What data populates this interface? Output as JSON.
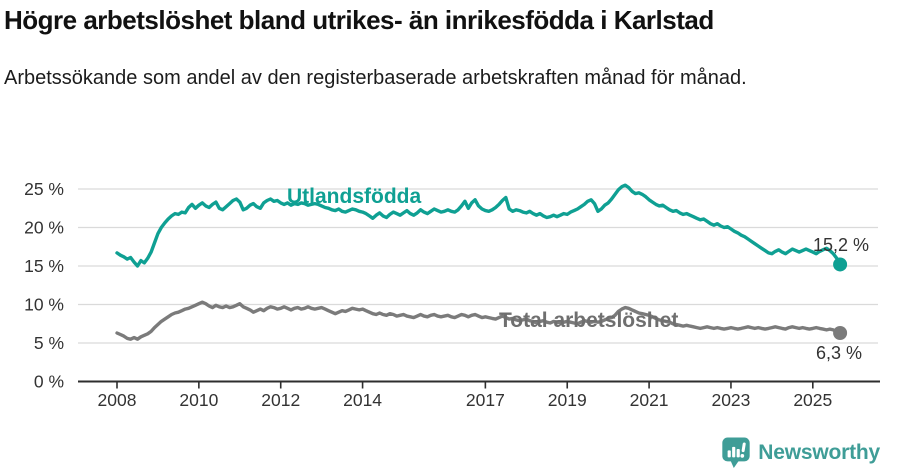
{
  "header": {
    "title": "Högre arbetslöshet bland utrikes- än inrikesfödda i Karlstad",
    "subtitle": "Arbetssökande som andel av den registerbaserade arbetskraften månad för månad."
  },
  "footer": {
    "brand": "Newsworthy",
    "brand_color": "#3f9d97"
  },
  "chart_data": {
    "type": "line",
    "title": "Högre arbetslöshet bland utrikes- än inrikesfödda i Karlstad",
    "x_start_year": 2008,
    "x_step_months": 1,
    "x_end_label_period": "sep 2025",
    "x_tick_years": [
      2008,
      2010,
      2012,
      2014,
      2017,
      2019,
      2021,
      2023,
      2025
    ],
    "x_tick_labels": [
      "2008",
      "2010",
      "2012",
      "2014",
      "2017",
      "2019",
      "2021",
      "2023",
      "2025"
    ],
    "y_ticks": [
      0,
      5,
      10,
      15,
      20,
      25
    ],
    "y_tick_labels": [
      "0 %",
      "5 %",
      "10 %",
      "15 %",
      "20 %",
      "25 %"
    ],
    "ylim": [
      0,
      27
    ],
    "grid": "horizontal",
    "grid_color": "#dadada",
    "axis_color": "#2e2e2e",
    "legend_position": "inline-labels",
    "series": [
      {
        "name": "Utlandsfödda",
        "color": "#0fa093",
        "end_label": "15,2 %",
        "end_value": 15.2,
        "values": [
          16.7,
          16.4,
          16.2,
          15.9,
          16.1,
          15.5,
          15.0,
          15.7,
          15.4,
          16.0,
          16.8,
          18.0,
          19.2,
          20.0,
          20.6,
          21.1,
          21.5,
          21.8,
          21.7,
          22.0,
          21.9,
          22.6,
          23.0,
          22.5,
          22.9,
          23.2,
          22.8,
          22.6,
          23.0,
          23.3,
          22.5,
          22.3,
          22.7,
          23.1,
          23.5,
          23.7,
          23.3,
          22.3,
          22.5,
          22.9,
          23.1,
          22.7,
          22.5,
          23.2,
          23.5,
          23.7,
          23.4,
          23.5,
          23.2,
          23.0,
          23.2,
          22.9,
          23.1,
          23.0,
          23.2,
          23.1,
          22.9,
          23.0,
          23.1,
          23.0,
          22.8,
          22.6,
          22.5,
          22.3,
          22.2,
          22.4,
          22.1,
          22.0,
          22.2,
          22.4,
          22.3,
          22.1,
          22.0,
          21.8,
          21.5,
          21.2,
          21.6,
          21.9,
          21.5,
          21.3,
          21.7,
          22.0,
          21.8,
          21.6,
          21.9,
          22.2,
          21.8,
          21.6,
          21.9,
          22.3,
          22.0,
          21.8,
          22.1,
          22.4,
          22.2,
          22.0,
          22.1,
          22.3,
          22.1,
          22.0,
          22.3,
          22.8,
          23.4,
          22.5,
          23.2,
          23.6,
          22.8,
          22.4,
          22.2,
          22.1,
          22.3,
          22.6,
          23.0,
          23.5,
          23.9,
          22.4,
          22.1,
          22.3,
          22.2,
          22.0,
          21.9,
          22.1,
          21.8,
          21.6,
          21.8,
          21.5,
          21.3,
          21.4,
          21.6,
          21.4,
          21.6,
          21.8,
          21.7,
          22.0,
          22.2,
          22.4,
          22.7,
          23.0,
          23.4,
          23.6,
          23.1,
          22.1,
          22.4,
          22.9,
          23.2,
          23.7,
          24.3,
          24.9,
          25.3,
          25.5,
          25.2,
          24.7,
          24.4,
          24.5,
          24.3,
          24.0,
          23.6,
          23.3,
          23.0,
          22.8,
          22.9,
          22.6,
          22.3,
          22.1,
          22.2,
          21.9,
          21.7,
          21.8,
          21.6,
          21.4,
          21.2,
          21.0,
          21.1,
          20.8,
          20.5,
          20.3,
          20.5,
          20.2,
          20.0,
          20.1,
          19.8,
          19.5,
          19.3,
          19.0,
          18.8,
          18.5,
          18.2,
          17.9,
          17.6,
          17.3,
          17.0,
          16.7,
          16.6,
          16.9,
          17.1,
          16.8,
          16.6,
          16.9,
          17.2,
          17.0,
          16.8,
          17.0,
          17.2,
          17.0,
          16.8,
          16.6,
          16.9,
          17.1,
          17.3,
          17.0,
          16.6,
          16.0,
          15.2
        ]
      },
      {
        "name": "Total arbetslöshet",
        "color": "#7b7b7b",
        "end_label": "6,3 %",
        "end_value": 6.3,
        "values": [
          6.3,
          6.1,
          5.9,
          5.6,
          5.5,
          5.7,
          5.5,
          5.8,
          6.0,
          6.2,
          6.5,
          7.0,
          7.4,
          7.8,
          8.1,
          8.4,
          8.7,
          8.9,
          9.0,
          9.2,
          9.4,
          9.5,
          9.7,
          9.9,
          10.1,
          10.3,
          10.1,
          9.8,
          9.6,
          9.9,
          9.7,
          9.6,
          9.8,
          9.6,
          9.7,
          9.9,
          10.1,
          9.7,
          9.5,
          9.3,
          9.0,
          9.2,
          9.4,
          9.2,
          9.5,
          9.7,
          9.6,
          9.4,
          9.5,
          9.7,
          9.5,
          9.3,
          9.5,
          9.6,
          9.4,
          9.5,
          9.7,
          9.5,
          9.4,
          9.5,
          9.6,
          9.4,
          9.2,
          9.0,
          8.8,
          9.0,
          9.2,
          9.1,
          9.3,
          9.5,
          9.4,
          9.3,
          9.4,
          9.2,
          9.0,
          8.8,
          8.7,
          8.9,
          8.7,
          8.6,
          8.8,
          8.7,
          8.5,
          8.6,
          8.7,
          8.5,
          8.4,
          8.3,
          8.5,
          8.7,
          8.5,
          8.4,
          8.6,
          8.7,
          8.5,
          8.4,
          8.5,
          8.6,
          8.4,
          8.3,
          8.5,
          8.7,
          8.6,
          8.4,
          8.6,
          8.7,
          8.5,
          8.3,
          8.4,
          8.3,
          8.2,
          8.1,
          8.3,
          8.5,
          8.3,
          8.1,
          8.2,
          8.0,
          7.9,
          8.0,
          8.1,
          7.9,
          7.8,
          7.6,
          7.8,
          7.9,
          7.7,
          7.6,
          7.8,
          7.7,
          7.6,
          7.7,
          7.8,
          7.7,
          7.6,
          7.5,
          7.7,
          7.9,
          7.8,
          7.7,
          7.8,
          7.7,
          7.8,
          8.0,
          8.2,
          8.3,
          8.6,
          9.1,
          9.4,
          9.6,
          9.5,
          9.3,
          9.1,
          8.9,
          8.8,
          8.7,
          8.6,
          8.4,
          8.2,
          8.0,
          7.9,
          7.8,
          7.7,
          7.5,
          7.4,
          7.3,
          7.2,
          7.3,
          7.2,
          7.1,
          7.0,
          6.9,
          7.0,
          7.1,
          7.0,
          6.9,
          7.0,
          6.9,
          6.8,
          6.9,
          7.0,
          6.9,
          6.8,
          6.9,
          7.0,
          7.1,
          7.0,
          6.9,
          7.0,
          6.9,
          6.8,
          6.9,
          7.0,
          7.1,
          7.0,
          6.9,
          6.8,
          7.0,
          7.1,
          7.0,
          6.9,
          7.0,
          6.9,
          6.8,
          6.9,
          7.0,
          6.9,
          6.8,
          6.7,
          6.8,
          6.7,
          6.5,
          6.3
        ]
      }
    ]
  }
}
